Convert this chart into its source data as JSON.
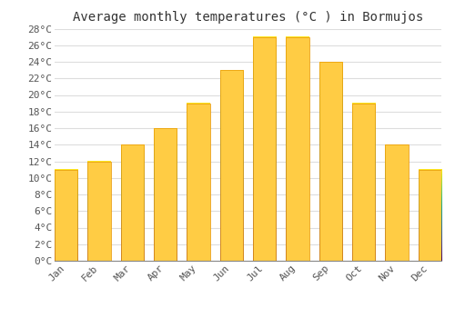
{
  "title": "Average monthly temperatures (°C ) in Bormujos",
  "months": [
    "Jan",
    "Feb",
    "Mar",
    "Apr",
    "May",
    "Jun",
    "Jul",
    "Aug",
    "Sep",
    "Oct",
    "Nov",
    "Dec"
  ],
  "values": [
    11,
    12,
    14,
    16,
    19,
    23,
    27,
    27,
    24,
    19,
    14,
    11
  ],
  "bar_color_top": "#FFCC44",
  "bar_color_bottom": "#F5A623",
  "bar_edge_color": "#E8950A",
  "background_color": "#FFFFFF",
  "grid_color": "#DDDDDD",
  "ylim": [
    0,
    28
  ],
  "ytick_step": 2,
  "title_fontsize": 10,
  "tick_fontsize": 8,
  "font_family": "monospace"
}
